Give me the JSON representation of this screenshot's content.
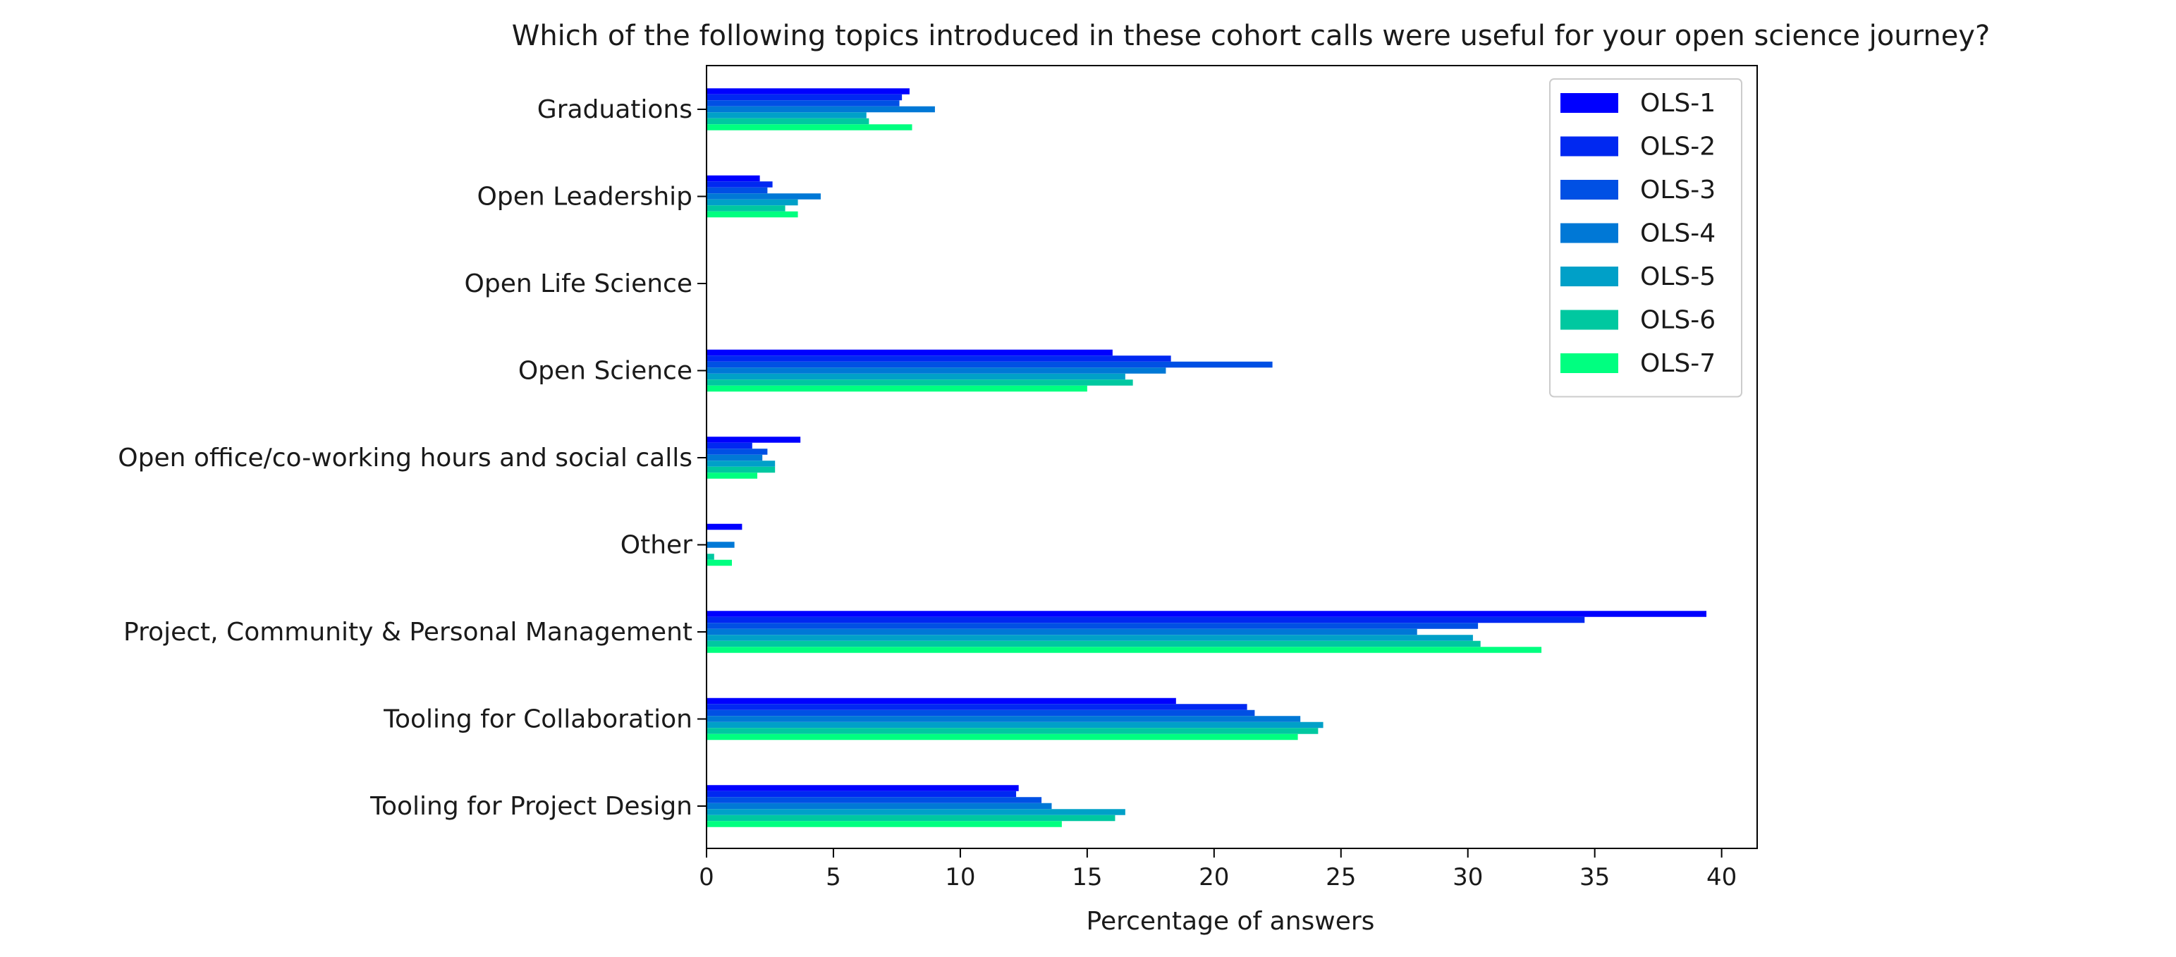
{
  "chart_data": {
    "type": "bar",
    "orientation": "horizontal",
    "title": "Which of the following topics introduced in these cohort calls were useful for your open science journey?",
    "xlabel": "Percentage of answers",
    "ylabel": "",
    "xlim": [
      0,
      41.4
    ],
    "xticks": [
      0,
      5,
      10,
      15,
      20,
      25,
      30,
      35,
      40
    ],
    "grid": false,
    "legend_position": "top-right",
    "categories": [
      "Graduations",
      "Open Leadership",
      "Open Life Science",
      "Open Science",
      "Open office/co-working hours and social calls",
      "Other",
      "Project, Community & Personal Management",
      "Tooling for Collaboration",
      "Tooling for Project Design"
    ],
    "series": [
      {
        "name": "OLS-1",
        "color": "#0000ff",
        "values": [
          8.0,
          2.1,
          0,
          16.0,
          3.7,
          1.4,
          39.4,
          18.5,
          12.3
        ]
      },
      {
        "name": "OLS-2",
        "color": "#0028f1",
        "values": [
          7.7,
          2.6,
          0,
          18.3,
          1.8,
          0,
          34.6,
          21.3,
          12.2
        ]
      },
      {
        "name": "OLS-3",
        "color": "#0050e4",
        "values": [
          7.6,
          2.4,
          0,
          22.3,
          2.4,
          0,
          30.4,
          21.6,
          13.2
        ]
      },
      {
        "name": "OLS-4",
        "color": "#0078d6",
        "values": [
          9.0,
          4.5,
          0,
          18.1,
          2.2,
          1.1,
          28.0,
          23.4,
          13.6
        ]
      },
      {
        "name": "OLS-5",
        "color": "#00a0c8",
        "values": [
          6.3,
          3.6,
          0,
          16.5,
          2.7,
          0,
          30.2,
          24.3,
          16.5
        ]
      },
      {
        "name": "OLS-6",
        "color": "#00c8a0",
        "values": [
          6.4,
          3.1,
          0,
          16.8,
          2.7,
          0.3,
          30.5,
          24.1,
          16.1
        ]
      },
      {
        "name": "OLS-7",
        "color": "#00ff80",
        "values": [
          8.1,
          3.6,
          0,
          15.0,
          2.0,
          1.0,
          32.9,
          23.3,
          14.0
        ]
      }
    ]
  }
}
